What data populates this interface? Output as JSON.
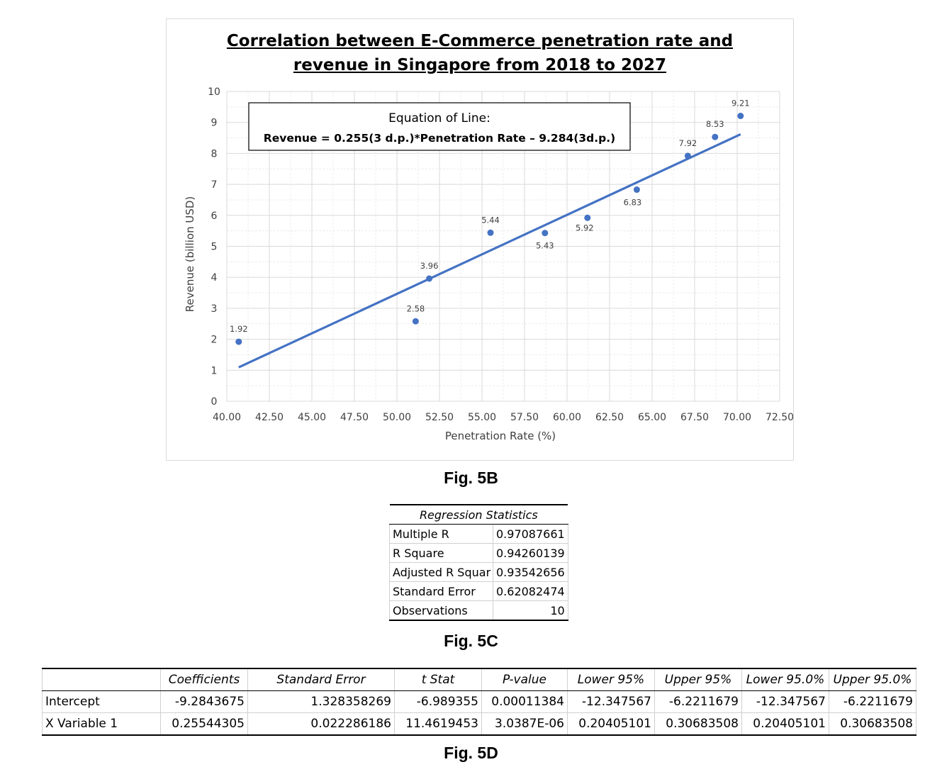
{
  "chart_data": {
    "type": "scatter",
    "title_line1": "Correlation between E-Commerce penetration rate and",
    "title_line2": "revenue in Singapore from 2018 to 2027",
    "xlabel": "Penetration Rate (%)",
    "ylabel": "Revenue (billion USD)",
    "xlim": [
      40,
      72.5
    ],
    "ylim": [
      0,
      10
    ],
    "x_ticks": [
      "40.00",
      "42.50",
      "45.00",
      "47.50",
      "50.00",
      "52.50",
      "55.00",
      "57.50",
      "60.00",
      "62.50",
      "65.00",
      "67.50",
      "70.00",
      "72.50"
    ],
    "y_ticks": [
      "0",
      "1",
      "2",
      "3",
      "4",
      "5",
      "6",
      "7",
      "8",
      "9",
      "10"
    ],
    "points": [
      {
        "x": 40.7,
        "y": 1.92,
        "label": "1.92"
      },
      {
        "x": 51.1,
        "y": 2.58,
        "label": "2.58"
      },
      {
        "x": 51.9,
        "y": 3.96,
        "label": "3.96"
      },
      {
        "x": 55.5,
        "y": 5.44,
        "label": "5.44"
      },
      {
        "x": 58.7,
        "y": 5.43,
        "label": "5.43"
      },
      {
        "x": 61.2,
        "y": 5.92,
        "label": "5.92"
      },
      {
        "x": 64.1,
        "y": 6.83,
        "label": "6.83"
      },
      {
        "x": 67.1,
        "y": 7.92,
        "label": "7.92"
      },
      {
        "x": 68.7,
        "y": 8.53,
        "label": "8.53"
      },
      {
        "x": 70.2,
        "y": 9.21,
        "label": "9.21"
      }
    ],
    "trendline": {
      "slope": 0.255,
      "intercept": -9.284,
      "x_start": 40.7,
      "x_end": 70.2
    },
    "equation_title": "Equation of Line:",
    "equation_text": "Revenue = 0.255(3 d.p.)*Penetration Rate – 9.284(3d.p.)",
    "colors": {
      "points": "#4472c4",
      "line": "#4472c4",
      "grid": "#d9d9d9"
    }
  },
  "captions": {
    "fig5b": "Fig. 5B",
    "fig5c": "Fig. 5C",
    "fig5d": "Fig. 5D"
  },
  "regression": {
    "header": "Regression Statistics",
    "rows": [
      {
        "label": "Multiple R",
        "value": "0.97087661"
      },
      {
        "label": "R Square",
        "value": "0.94260139"
      },
      {
        "label": "Adjusted R Squar",
        "value": "0.93542656"
      },
      {
        "label": "Standard Error",
        "value": "0.62082474"
      },
      {
        "label": "Observations",
        "value": "10"
      }
    ]
  },
  "coefficients": {
    "headers": [
      "",
      "Coefficients",
      "Standard Error",
      "t Stat",
      "P-value",
      "Lower 95%",
      "Upper 95%",
      "Lower 95.0%",
      "Upper 95.0%"
    ],
    "rows": [
      [
        "Intercept",
        "-9.2843675",
        "1.328358269",
        "-6.989355",
        "0.00011384",
        "-12.347567",
        "-6.2211679",
        "-12.347567",
        "-6.2211679"
      ],
      [
        "X Variable 1",
        "0.25544305",
        "0.022286186",
        "11.4619453",
        "3.0387E-06",
        "0.20405101",
        "0.30683508",
        "0.20405101",
        "0.30683508"
      ]
    ]
  }
}
